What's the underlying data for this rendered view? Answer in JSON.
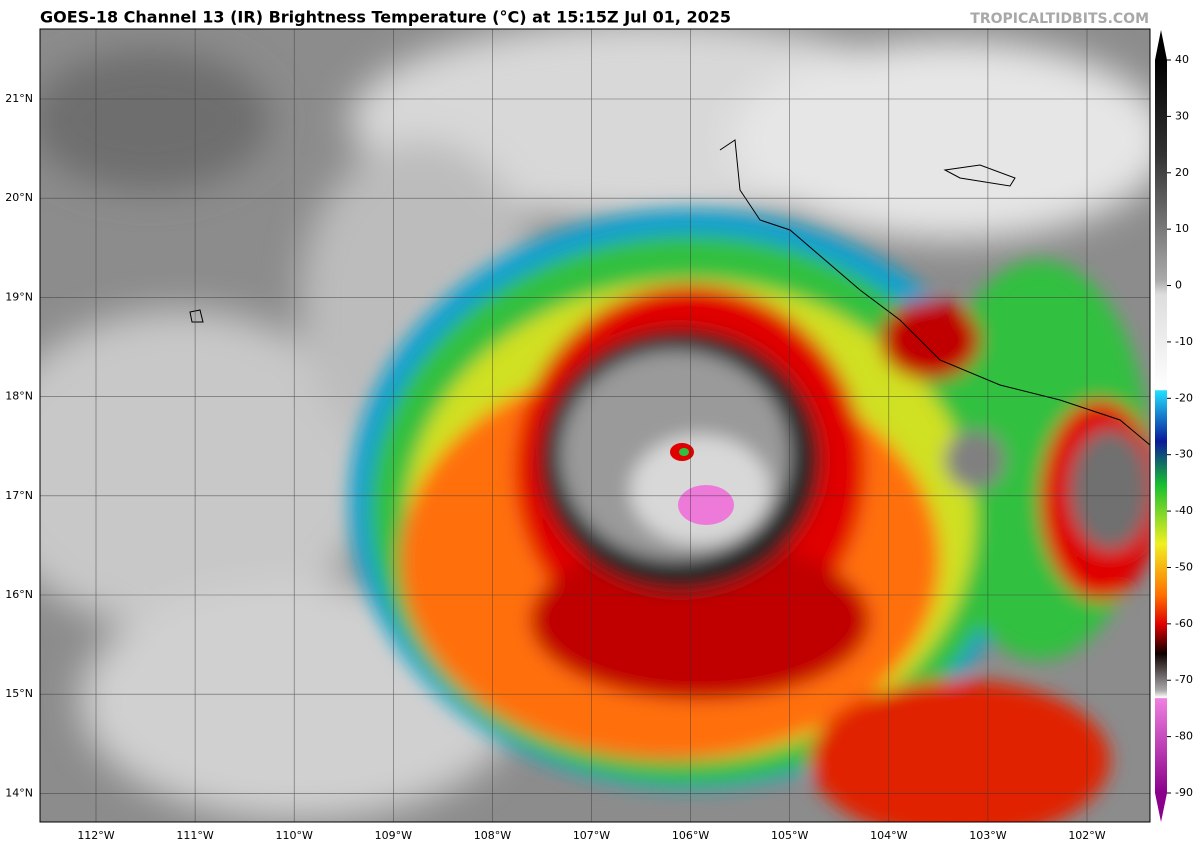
{
  "header": {
    "title": "GOES-18 Channel 13 (IR) Brightness Temperature (°C) at 15:15Z Jul 01, 2025",
    "source": "TROPICALTIDBITS.COM"
  },
  "map": {
    "lat_labels": [
      "21°N",
      "20°N",
      "19°N",
      "18°N",
      "17°N",
      "16°N",
      "15°N",
      "14°N"
    ],
    "lon_labels": [
      "112°W",
      "111°W",
      "110°W",
      "109°W",
      "108°W",
      "107°W",
      "106°W",
      "105°W",
      "104°W",
      "103°W",
      "102°W"
    ]
  },
  "colorbar": {
    "ticks": [
      40,
      30,
      20,
      10,
      0,
      -10,
      -20,
      -30,
      -40,
      -50,
      -60,
      -70,
      -80,
      -90
    ]
  }
}
